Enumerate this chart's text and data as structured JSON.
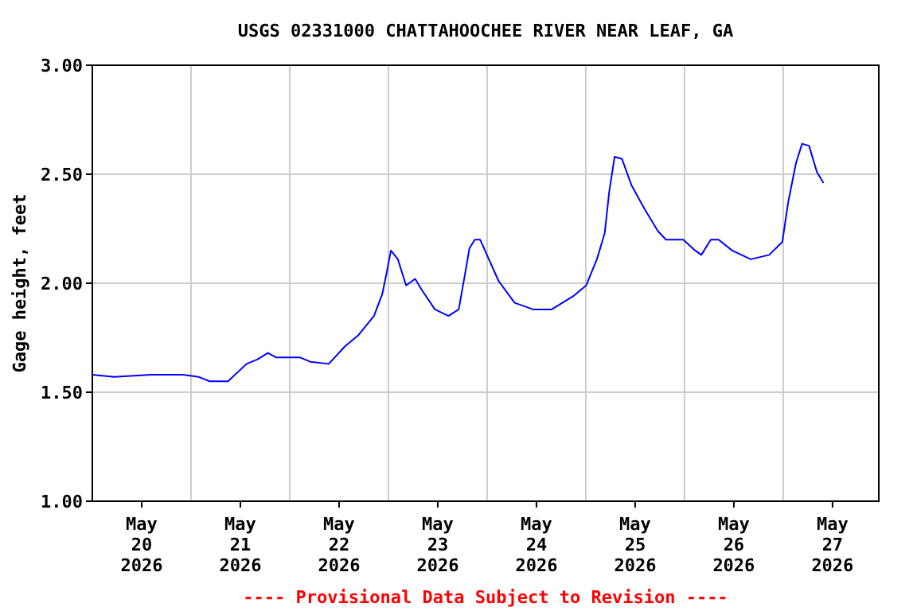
{
  "chart_data": {
    "type": "line",
    "title": "USGS 02331000 CHATTAHOOCHEE RIVER NEAR LEAF, GA",
    "ylabel": "Gage height, feet",
    "annotations": [
      "---- Provisional Data Subject to Revision ----"
    ],
    "x": [
      "2026-05-20T00:00",
      "2026-05-20T05:18",
      "2026-05-20T14:18",
      "2026-05-20T22:00",
      "2026-05-21T01:54",
      "2026-05-21T04:30",
      "2026-05-21T09:00",
      "2026-05-21T13:30",
      "2026-05-21T16:06",
      "2026-05-21T18:42",
      "2026-05-21T20:36",
      "2026-05-22T02:24",
      "2026-05-22T05:00",
      "2026-05-22T09:30",
      "2026-05-22T13:24",
      "2026-05-22T16:36",
      "2026-05-22T20:30",
      "2026-05-22T22:30",
      "2026-05-22T23:42",
      "2026-05-23T00:36",
      "2026-05-23T02:18",
      "2026-05-23T04:18",
      "2026-05-23T06:30",
      "2026-05-23T08:06",
      "2026-05-23T11:18",
      "2026-05-23T14:36",
      "2026-05-23T17:06",
      "2026-05-23T18:42",
      "2026-05-23T19:42",
      "2026-05-23T21:00",
      "2026-05-23T22:18",
      "2026-05-24T02:48",
      "2026-05-24T06:42",
      "2026-05-24T11:12",
      "2026-05-24T15:42",
      "2026-05-24T20:54",
      "2026-05-25T00:06",
      "2026-05-25T02:42",
      "2026-05-25T04:36",
      "2026-05-25T05:42",
      "2026-05-25T07:00",
      "2026-05-25T08:48",
      "2026-05-25T11:06",
      "2026-05-25T14:18",
      "2026-05-25T17:30",
      "2026-05-25T19:30",
      "2026-05-25T23:42",
      "2026-05-26T02:36",
      "2026-05-26T04:06",
      "2026-05-26T06:24",
      "2026-05-26T08:18",
      "2026-05-26T11:36",
      "2026-05-26T16:06",
      "2026-05-26T20:36",
      "2026-05-26T23:48",
      "2026-05-27T01:12",
      "2026-05-27T03:06",
      "2026-05-27T04:36",
      "2026-05-27T06:18",
      "2026-05-27T08:12",
      "2026-05-27T09:48"
    ],
    "series": [
      {
        "color": "#0000ff",
        "values": [
          1.58,
          1.57,
          1.58,
          1.58,
          1.57,
          1.55,
          1.55,
          1.63,
          1.65,
          1.68,
          1.66,
          1.66,
          1.64,
          1.63,
          1.71,
          1.76,
          1.85,
          1.95,
          2.06,
          2.15,
          2.11,
          1.99,
          2.02,
          1.97,
          1.88,
          1.85,
          1.88,
          2.05,
          2.16,
          2.2,
          2.2,
          2.01,
          1.91,
          1.88,
          1.88,
          1.94,
          1.99,
          2.11,
          2.23,
          2.42,
          2.58,
          2.57,
          2.45,
          2.34,
          2.24,
          2.2,
          2.2,
          2.15,
          2.13,
          2.2,
          2.2,
          2.15,
          2.11,
          2.13,
          2.19,
          2.37,
          2.55,
          2.64,
          2.63,
          2.51,
          2.46
        ]
      }
    ],
    "xlim": [
      "2026-05-20T00:00",
      "2026-05-27T23:15"
    ],
    "xticks": [
      {
        "value": "2026-05-20T12:00",
        "label": "May\n20\n2026"
      },
      {
        "value": "2026-05-21T00:00",
        "label": null
      },
      {
        "value": "2026-05-21T12:00",
        "label": "May\n21\n2026"
      },
      {
        "value": "2026-05-22T00:00",
        "label": null
      },
      {
        "value": "2026-05-22T12:00",
        "label": "May\n22\n2026"
      },
      {
        "value": "2026-05-23T00:00",
        "label": null
      },
      {
        "value": "2026-05-23T12:00",
        "label": "May\n23\n2026"
      },
      {
        "value": "2026-05-24T00:00",
        "label": null
      },
      {
        "value": "2026-05-24T12:00",
        "label": "May\n24\n2026"
      },
      {
        "value": "2026-05-25T00:00",
        "label": null
      },
      {
        "value": "2026-05-25T12:00",
        "label": "May\n25\n2026"
      },
      {
        "value": "2026-05-26T00:00",
        "label": null
      },
      {
        "value": "2026-05-26T12:00",
        "label": "May\n26\n2026"
      },
      {
        "value": "2026-05-27T00:00",
        "label": null
      },
      {
        "value": "2026-05-27T12:00",
        "label": "May\n27\n2026"
      }
    ],
    "ylim": [
      1,
      3
    ],
    "yticks": [
      {
        "value": 1,
        "label": "1.00"
      },
      {
        "value": 1.5,
        "label": "1.50"
      },
      {
        "value": 2,
        "label": "2.00"
      },
      {
        "value": 2.5,
        "label": "2.50"
      },
      {
        "value": 3,
        "label": "3.00"
      }
    ],
    "grid": true,
    "marker": "none",
    "line_style": "solid"
  }
}
